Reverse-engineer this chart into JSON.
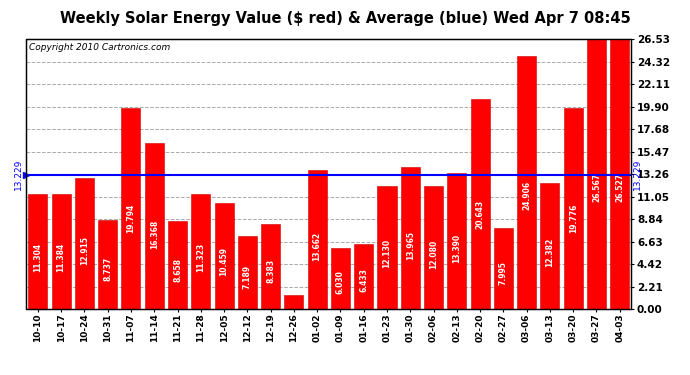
{
  "title": "Weekly Solar Energy Value ($ red) & Average (blue) Wed Apr 7 08:45",
  "copyright": "Copyright 2010 Cartronics.com",
  "categories": [
    "10-10",
    "10-17",
    "10-24",
    "10-31",
    "11-07",
    "11-14",
    "11-21",
    "11-28",
    "12-05",
    "12-12",
    "12-19",
    "12-26",
    "01-02",
    "01-09",
    "01-16",
    "01-23",
    "01-30",
    "02-06",
    "02-13",
    "02-20",
    "02-27",
    "03-06",
    "03-13",
    "03-20",
    "03-27",
    "04-03"
  ],
  "values": [
    11.304,
    11.384,
    12.915,
    8.737,
    19.794,
    16.368,
    8.658,
    11.323,
    10.459,
    7.189,
    8.383,
    1.364,
    13.662,
    6.03,
    6.433,
    12.13,
    13.965,
    12.08,
    13.39,
    20.643,
    7.995,
    24.906,
    12.382,
    19.776,
    26.567,
    26.527
  ],
  "average": 13.229,
  "bar_color": "#ff0000",
  "average_color": "#0000ff",
  "background_color": "#ffffff",
  "plot_bg_color": "#ffffff",
  "grid_color": "#aaaaaa",
  "ylim": [
    0.0,
    26.53
  ],
  "yticks": [
    0.0,
    2.21,
    4.42,
    6.63,
    8.84,
    11.05,
    13.26,
    15.47,
    17.68,
    19.9,
    22.11,
    24.32,
    26.53
  ],
  "bar_edge_color": "#cc0000",
  "value_label_color": "#ffffff",
  "value_label_fontsize": 5.5,
  "avg_label": "13.229",
  "avg_label_color": "#0000ff",
  "title_fontsize": 10.5,
  "copyright_fontsize": 6.5,
  "xtick_fontsize": 6.5,
  "ytick_fontsize": 7.5
}
